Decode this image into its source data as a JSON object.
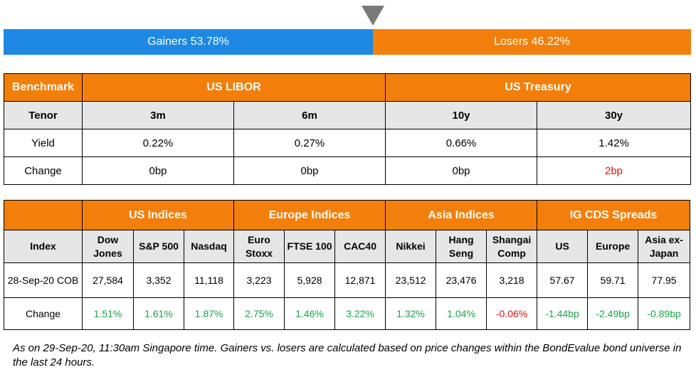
{
  "market_bar": {
    "gainers_label": "Gainers 53.78%",
    "losers_label": "Losers 46.22%",
    "gainers_pct": 53.78,
    "losers_pct": 46.22,
    "colors": {
      "gainers": "#1e88e5",
      "losers": "#f27f0c",
      "pointer": "#7a7a7a"
    }
  },
  "rates_table": {
    "benchmark_label": "Benchmark",
    "group_us_libor": "US LIBOR",
    "group_us_treasury": "US Treasury",
    "tenor_label": "Tenor",
    "tenors": [
      "3m",
      "6m",
      "10y",
      "30y"
    ],
    "yield_label": "Yield",
    "yields": [
      "0.22%",
      "0.27%",
      "0.66%",
      "1.42%"
    ],
    "change_label": "Change",
    "changes": [
      "0bp",
      "0bp",
      "0bp",
      "2bp"
    ]
  },
  "indices_table": {
    "groups": [
      "US Indices",
      "Europe Indices",
      "Asia Indices",
      "IG CDS Spreads"
    ],
    "index_label": "Index",
    "columns": [
      "Dow Jones",
      "S&P 500",
      "Nasdaq",
      "Euro Stoxx",
      "FTSE 100",
      "CAC40",
      "Nikkei",
      "Hang Seng",
      "Shangai Comp",
      "US",
      "Europe",
      "Asia ex-Japan"
    ],
    "col_line1": [
      "Dow",
      "S&P 500",
      "Nasdaq",
      "Euro",
      "FTSE 100",
      "CAC40",
      "Nikkei",
      "Hang",
      "Shangai",
      "US",
      "Europe",
      "Asia ex-"
    ],
    "col_line2": [
      "Jones",
      "",
      "",
      "Stoxx",
      "",
      "",
      "",
      "Seng",
      "Comp",
      "",
      "",
      "Japan"
    ],
    "date_label": "28-Sep-20 COB",
    "values": [
      "27,584",
      "3,352",
      "11,118",
      "3,223",
      "5,928",
      "12,871",
      "23,512",
      "23,476",
      "3,218",
      "57.67",
      "59.71",
      "77.95"
    ],
    "change_label": "Change",
    "changes": [
      "1.51%",
      "1.61%",
      "1.87%",
      "2.75%",
      "1.46%",
      "3.22%",
      "1.32%",
      "1.04%",
      "-0.06%",
      "-1.44bp",
      "-2.49bp",
      "-0.89bp"
    ]
  },
  "footnote": "As on 29-Sep-20, 11:30am Singapore time. Gainers vs. losers are calculated based on price changes within the BondEvalue bond universe in the last 24 hours."
}
